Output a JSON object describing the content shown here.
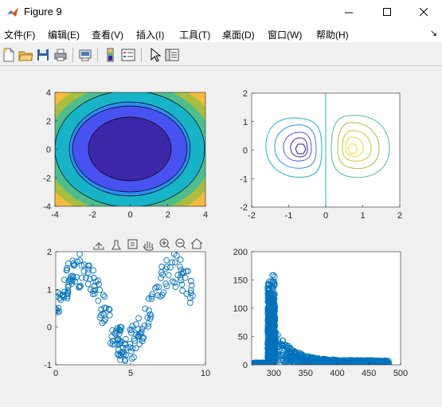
{
  "window": {
    "title": "Figure 9"
  },
  "menu": [
    "文件(F)",
    "编辑(E)",
    "查看(V)",
    "插入(I)",
    "工具(T)",
    "桌面(D)",
    "窗口(W)",
    "帮助(H)"
  ],
  "toolbar": [
    "new-figure",
    "open-file",
    "save",
    "print",
    "print-preview",
    "link-plot",
    "insert-colorbar",
    "insert-legend",
    "edit-plot",
    "property-inspector"
  ],
  "axes_toolbar": [
    "export",
    "brush",
    "data-tips",
    "pan",
    "zoom-in",
    "zoom-out",
    "restore-view"
  ],
  "colors": {
    "contour_levels": [
      "#3e26a8",
      "#4752f0",
      "#2a8ef0",
      "#17b4c8",
      "#4ebd8c",
      "#a9be3d",
      "#f6ba3d"
    ],
    "scatter_blue": "#0072bd"
  },
  "chart_data": [
    {
      "type": "filled-contour",
      "x_ticks": [
        "-4",
        "-2",
        "0",
        "2",
        "4"
      ],
      "y_ticks": [
        "-4",
        "-2",
        "0",
        "2",
        "4"
      ],
      "xlim": [
        -4,
        4
      ],
      "ylim": [
        -4,
        4
      ],
      "levels": 7
    },
    {
      "type": "contour",
      "x_ticks": [
        "-2",
        "-1",
        "0",
        "1",
        "2"
      ],
      "y_ticks": [
        "-2",
        "-1",
        "0",
        "1",
        "2"
      ],
      "xlim": [
        -2,
        2
      ],
      "ylim": [
        -2,
        2
      ]
    },
    {
      "type": "scatter",
      "x_ticks": [
        "0",
        "5",
        "10"
      ],
      "y_ticks": [
        "-1",
        "0",
        "1",
        "2"
      ],
      "xlim": [
        0,
        10
      ],
      "ylim": [
        -1,
        2
      ]
    },
    {
      "type": "scatter",
      "x_ticks": [
        "300",
        "350",
        "400",
        "450",
        "500"
      ],
      "y_ticks": [
        "0",
        "50",
        "100",
        "150",
        "200"
      ],
      "xlim": [
        265,
        500
      ],
      "ylim": [
        0,
        200
      ]
    }
  ]
}
